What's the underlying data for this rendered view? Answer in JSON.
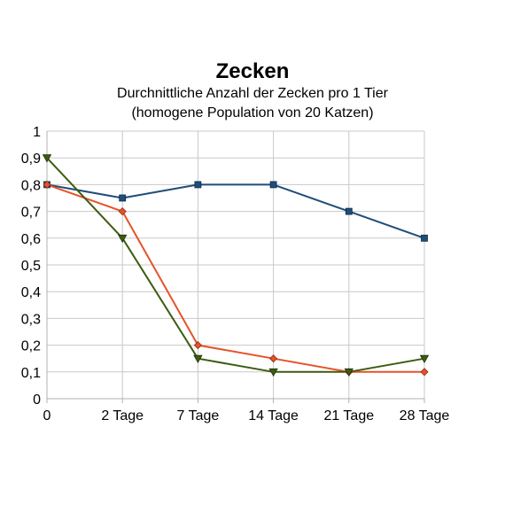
{
  "chart_data": {
    "type": "line",
    "title": "Zecken",
    "subtitle_lines": [
      "Durchnittliche Anzahl der Zecken pro 1 Tier",
      "(homogene Population von 20 Katzen)"
    ],
    "xlabel": "",
    "ylabel": "",
    "categories": [
      "0",
      "2 Tage",
      "7 Tage",
      "14 Tage",
      "21 Tage",
      "28 Tage"
    ],
    "ylim": [
      0,
      1
    ],
    "yticks": [
      "0",
      "0,1",
      "0,2",
      "0,3",
      "0,4",
      "0,5",
      "0,6",
      "0,7",
      "0,8",
      "0,9",
      "1"
    ],
    "grid": true,
    "legend": "none",
    "series": [
      {
        "values": [
          0.8,
          0.75,
          0.8,
          0.8,
          0.7,
          0.6
        ],
        "color": "#1f4e79",
        "marker": "square"
      },
      {
        "values": [
          0.8,
          0.7,
          0.2,
          0.15,
          0.1,
          0.1
        ],
        "color": "#e5532a",
        "marker": "diamond"
      },
      {
        "values": [
          0.9,
          0.6,
          0.15,
          0.1,
          0.1,
          0.15
        ],
        "color": "#3d5c10",
        "marker": "triangle-down"
      }
    ]
  }
}
